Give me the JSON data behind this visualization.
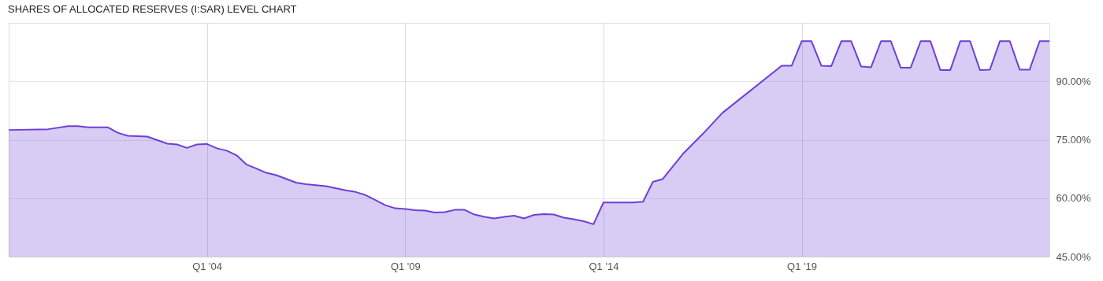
{
  "chart_data": {
    "type": "area",
    "title": "SHARES OF ALLOCATED RESERVES (I:SAR) LEVEL CHART",
    "x": [
      "1999-01",
      "2000-01",
      "2000-07",
      "2000-10",
      "2001-01",
      "2001-07",
      "2001-10",
      "2002-01",
      "2002-07",
      "2003-01",
      "2003-04",
      "2003-07",
      "2003-10",
      "2004-01",
      "2004-04",
      "2004-07",
      "2004-10",
      "2005-01",
      "2005-04",
      "2005-07",
      "2005-10",
      "2006-04",
      "2006-07",
      "2007-01",
      "2007-07",
      "2007-10",
      "2008-01",
      "2008-04",
      "2008-07",
      "2008-10",
      "2009-01",
      "2009-04",
      "2009-07",
      "2009-10",
      "2010-01",
      "2010-04",
      "2010-07",
      "2010-10",
      "2011-01",
      "2011-04",
      "2011-07",
      "2011-10",
      "2012-01",
      "2012-04",
      "2012-07",
      "2012-10",
      "2013-01",
      "2013-04",
      "2013-07",
      "2013-10",
      "2014-01",
      "2014-04",
      "2014-07",
      "2014-10",
      "2015-01",
      "2015-04",
      "2015-07",
      "2016-01",
      "2016-07",
      "2017-01",
      "2018-07",
      "2018-10",
      "2019-01",
      "2019-04",
      "2019-07",
      "2019-10",
      "2020-01",
      "2020-04",
      "2020-07",
      "2020-10",
      "2021-01",
      "2021-04",
      "2021-07",
      "2021-10",
      "2022-01",
      "2022-04",
      "2022-07",
      "2022-10",
      "2023-01",
      "2023-04",
      "2023-07",
      "2023-10",
      "2024-01",
      "2024-04",
      "2024-07",
      "2024-10",
      "2025-01",
      "2025-04"
    ],
    "series": [
      {
        "color": "#6e3fd6",
        "values": [
          77.5,
          77.7,
          78.5,
          78.5,
          78.2,
          78.2,
          76.8,
          76.0,
          75.8,
          74.0,
          73.8,
          72.9,
          73.8,
          73.9,
          72.8,
          72.2,
          71.0,
          68.6,
          67.6,
          66.5,
          65.9,
          64.0,
          63.6,
          63.1,
          62.0,
          61.6,
          60.8,
          59.5,
          58.2,
          57.4,
          57.2,
          56.9,
          56.8,
          56.3,
          56.4,
          57.0,
          57.0,
          55.8,
          55.2,
          54.8,
          55.2,
          55.5,
          54.8,
          55.7,
          55.9,
          55.8,
          55.0,
          54.6,
          54.1,
          53.3,
          58.9,
          58.9,
          58.9,
          58.9,
          59.1,
          64.2,
          64.9,
          71.3,
          76.4,
          81.9,
          94.0,
          94.0,
          100.3,
          100.3,
          94.0,
          93.9,
          100.3,
          100.3,
          93.8,
          93.6,
          100.3,
          100.3,
          93.5,
          93.5,
          100.3,
          100.3,
          92.9,
          92.9,
          100.3,
          100.3,
          92.9,
          93.0,
          100.3,
          100.3,
          93.0,
          93.0,
          100.3,
          100.3
        ]
      }
    ],
    "xlim": [
      "1999-01",
      "2025-04"
    ],
    "xticks": [
      {
        "value": "2004-01",
        "label": "Q1 '04"
      },
      {
        "value": "2009-01",
        "label": "Q1 '09"
      },
      {
        "value": "2014-01",
        "label": "Q1 '14"
      },
      {
        "value": "2019-01",
        "label": "Q1 '19"
      }
    ],
    "ylim": [
      45,
      105
    ],
    "yticks": [
      {
        "value": 45,
        "label": "45.00%"
      },
      {
        "value": 60,
        "label": "60.00%"
      },
      {
        "value": 75,
        "label": "75.00%"
      },
      {
        "value": 90,
        "label": "90.00%"
      }
    ],
    "grid": true,
    "marker": "none",
    "line_style": "solid"
  }
}
